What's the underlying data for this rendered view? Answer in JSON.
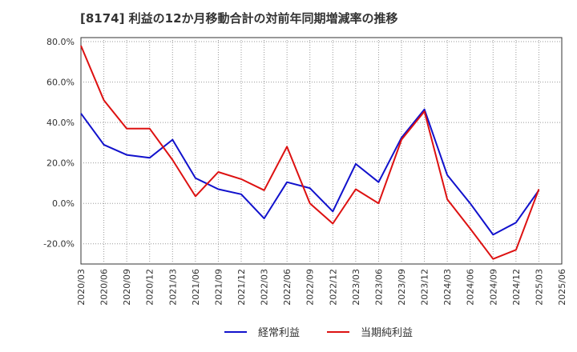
{
  "chart_data": {
    "type": "line",
    "title": "[8174]  利益の12か月移動合計の対前年同期増減率の推移",
    "xlabel": "",
    "ylabel": "",
    "ylim": [
      -30,
      82
    ],
    "yticks": [
      -20,
      0,
      20,
      40,
      60,
      80
    ],
    "ytick_labels": [
      "-20.0%",
      "0.0%",
      "20.0%",
      "40.0%",
      "60.0%",
      "80.0%"
    ],
    "grid": true,
    "legend_position": "bottom-center",
    "categories": [
      "2020/03",
      "2020/06",
      "2020/09",
      "2020/12",
      "2021/03",
      "2021/06",
      "2021/09",
      "2021/12",
      "2022/03",
      "2022/06",
      "2022/09",
      "2022/12",
      "2023/03",
      "2023/06",
      "2023/09",
      "2023/12",
      "2024/03",
      "2024/06",
      "2024/09",
      "2024/12",
      "2025/03",
      "2025/06"
    ],
    "series": [
      {
        "name": "経常利益",
        "color": "#1111cc",
        "values": [
          44.5,
          29,
          24,
          22.5,
          31.5,
          12.5,
          7,
          4.5,
          -7.5,
          10.5,
          7.5,
          -4,
          19.5,
          10.5,
          32.5,
          46.5,
          14,
          0,
          -15.5,
          -9.5,
          6.5,
          null
        ]
      },
      {
        "name": "当期純利益",
        "color": "#dd1111",
        "values": [
          78,
          51,
          37,
          37,
          21.5,
          3.5,
          15.5,
          12,
          6.5,
          28,
          0,
          -10,
          7,
          0,
          31.5,
          45.5,
          2,
          -12.5,
          -27.5,
          -23,
          7,
          null
        ]
      }
    ]
  }
}
